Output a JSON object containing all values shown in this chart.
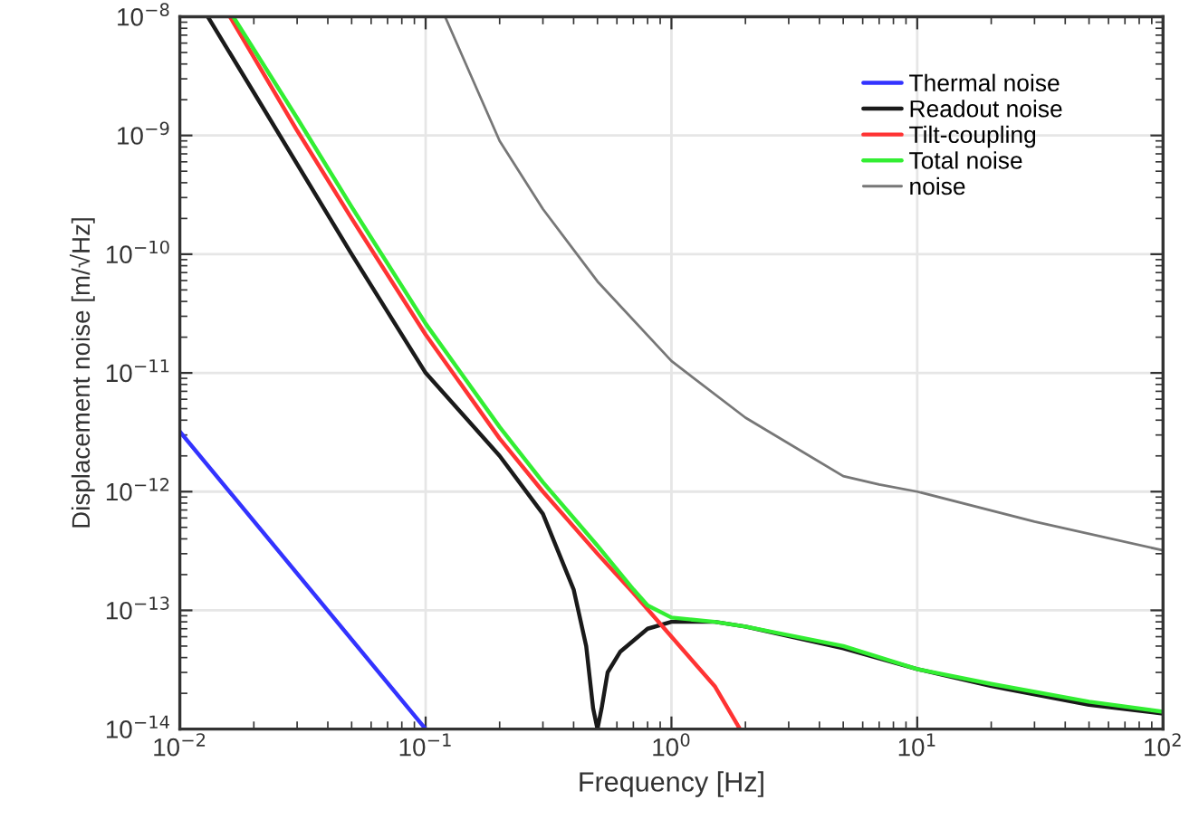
{
  "chart_data": {
    "type": "line",
    "xlabel": "Frequency [Hz]",
    "ylabel": "Displacement noise [m/√Hz]",
    "log": "xy",
    "grid": true,
    "legend": "top right",
    "line_style": "solid",
    "marker": "none",
    "xlim": [
      0.01,
      100
    ],
    "ylim": [
      1e-14,
      1e-08
    ],
    "xticks": [
      {
        "value": 0.01,
        "label": "10$^{−2}$"
      },
      {
        "value": 0.1,
        "label": "10$^{−1}$"
      },
      {
        "value": 1,
        "label": "10$^{0}$"
      },
      {
        "value": 10,
        "label": "10$^{1}$"
      },
      {
        "value": 100,
        "label": "10$^{2}$"
      }
    ],
    "yticks": [
      {
        "value": 1e-14,
        "label": "10$^{−14}$"
      },
      {
        "value": 1e-13,
        "label": "10$^{−13}$"
      },
      {
        "value": 1e-12,
        "label": "10$^{−12}$"
      },
      {
        "value": 1e-11,
        "label": "10$^{−11}$"
      },
      {
        "value": 1e-10,
        "label": "10$^{−10}$"
      },
      {
        "value": 1e-09,
        "label": "10$^{−9}$"
      },
      {
        "value": 1e-08,
        "label": "10$^{−8}$"
      }
    ],
    "series": [
      {
        "name": "Thermal noise",
        "color": "#3333ff",
        "x": [
          0.01,
          0.1
        ],
        "values": [
          3.2e-12,
          1e-14
        ]
      },
      {
        "name": "Readout noise",
        "color": "#1a1a1a",
        "x": [
          0.013,
          0.02,
          0.05,
          0.1,
          0.2,
          0.3,
          0.4,
          0.45,
          0.48,
          0.5,
          0.52,
          0.55,
          0.62,
          0.8,
          1,
          1.5,
          2,
          5,
          10,
          20,
          50,
          100
        ],
        "values": [
          1e-08,
          2.3e-09,
          1e-10,
          1e-11,
          2e-12,
          6.5e-13,
          1.5e-13,
          5e-14,
          1.5e-14,
          1e-14,
          1.5e-14,
          3e-14,
          4.5e-14,
          7e-14,
          8e-14,
          8e-14,
          7.3e-14,
          4.8e-14,
          3.2e-14,
          2.3e-14,
          1.6e-14,
          1.35e-14
        ]
      },
      {
        "name": "Tilt-coupling",
        "color": "#ff3333",
        "x": [
          0.016,
          0.03,
          0.05,
          0.1,
          0.2,
          0.3,
          0.5,
          0.7,
          1,
          1.5,
          1.9
        ],
        "values": [
          1e-08,
          1.1e-09,
          2e-10,
          2.1e-11,
          2.8e-12,
          1e-12,
          3e-13,
          1.4e-13,
          6e-14,
          2.3e-14,
          1e-14
        ]
      },
      {
        "name": "Total noise",
        "color": "#33ee33",
        "x": [
          0.0165,
          0.03,
          0.05,
          0.1,
          0.2,
          0.3,
          0.5,
          0.7,
          0.8,
          1,
          1.5,
          2,
          5,
          10,
          20,
          50,
          100
        ],
        "values": [
          1e-08,
          1.4e-09,
          2.5e-10,
          2.6e-11,
          3.5e-12,
          1.2e-12,
          3.5e-13,
          1.5e-13,
          1.1e-13,
          8.7e-14,
          8e-14,
          7.3e-14,
          5e-14,
          3.2e-14,
          2.4e-14,
          1.7e-14,
          1.4e-14
        ]
      },
      {
        "name": "noise",
        "color": "#777777",
        "x": [
          0.12,
          0.2,
          0.3,
          0.5,
          1,
          2,
          5,
          7,
          10,
          30,
          100
        ],
        "values": [
          1e-08,
          9e-10,
          2.4e-10,
          5.9e-11,
          1.26e-11,
          4.2e-12,
          1.35e-12,
          1.15e-12,
          1e-12,
          5.6e-13,
          3.2e-13
        ]
      }
    ]
  }
}
